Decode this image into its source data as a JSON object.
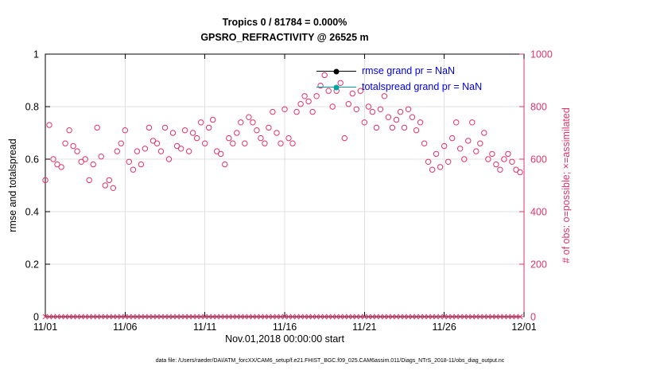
{
  "colors": {
    "pink": "#e23369",
    "blue": "#0000ee",
    "teal": "#00a3a3",
    "black": "#000000",
    "grid": "#e0e0e0"
  },
  "chart_data": {
    "type": "scatter",
    "title_line1": "Tropics 0 / 81784 = 0.000%",
    "title_line2": "GPSRO_REFRACTIVITY @ 26525 m",
    "y_left_label": "rmse and totalspread",
    "y_right_label": "# of obs: o=possible; ×=assimilated",
    "x_label": "Nov.01,2018 00:00:00 start",
    "footer": "data file: /Users/raeder/DAI/ATM_forcXX/CAM6_setup/f.e21.FHIST_BGC.f09_025.CAM6assim.011/Diags_NTrS_2018-11/obs_diag_output.nc",
    "grid": true,
    "legend_position": "top-center-inside",
    "x_axis": {
      "range_days": [
        0,
        30
      ],
      "tick_days": [
        0,
        5,
        10,
        15,
        20,
        25,
        30
      ],
      "tick_labels": [
        "11/01",
        "11/06",
        "11/11",
        "11/16",
        "11/21",
        "11/26",
        "12/01"
      ]
    },
    "y_left": {
      "range": [
        0,
        1
      ],
      "ticks": [
        0,
        0.2,
        0.4,
        0.6,
        0.8,
        1
      ],
      "labels": [
        "0",
        "0.2",
        "0.4",
        "0.6",
        "0.8",
        "1"
      ]
    },
    "y_right": {
      "range": [
        0,
        1000
      ],
      "ticks": [
        0,
        200,
        400,
        600,
        800,
        1000
      ],
      "labels": [
        "0",
        "200",
        "400",
        "600",
        "800",
        "1000"
      ]
    },
    "legend": [
      {
        "label": "rmse grand pr = NaN",
        "series": "rmse",
        "value": "NaN"
      },
      {
        "label": "totalspread grand pr = NaN",
        "series": "totalspread",
        "value": "NaN"
      }
    ],
    "series": [
      {
        "name": "possible_obs",
        "marker": "o",
        "axis": "right",
        "x_start_day": 0,
        "x_step_days": 0.25,
        "values": [
          520,
          730,
          600,
          580,
          570,
          660,
          710,
          650,
          630,
          590,
          600,
          520,
          580,
          720,
          610,
          500,
          520,
          490,
          630,
          660,
          710,
          590,
          560,
          630,
          580,
          640,
          720,
          670,
          660,
          630,
          720,
          600,
          700,
          650,
          640,
          710,
          630,
          700,
          680,
          740,
          660,
          720,
          750,
          630,
          620,
          580,
          680,
          660,
          700,
          740,
          660,
          760,
          740,
          710,
          680,
          660,
          720,
          780,
          700,
          660,
          790,
          680,
          660,
          780,
          810,
          840,
          820,
          780,
          840,
          880,
          920,
          860,
          800,
          860,
          890,
          680,
          810,
          850,
          790,
          860,
          740,
          800,
          780,
          720,
          790,
          840,
          760,
          720,
          750,
          780,
          720,
          790,
          760,
          710,
          740,
          660,
          590,
          560,
          620,
          570,
          650,
          590,
          680,
          740,
          640,
          600,
          670,
          740,
          630,
          660,
          700,
          600,
          620,
          580,
          560,
          600,
          620,
          590,
          560,
          550
        ]
      },
      {
        "name": "assimilated_obs",
        "marker": "x",
        "axis": "right",
        "x_start_day": 0,
        "x_step_days": 0.25,
        "constant_value": 0,
        "count": 120
      }
    ]
  }
}
